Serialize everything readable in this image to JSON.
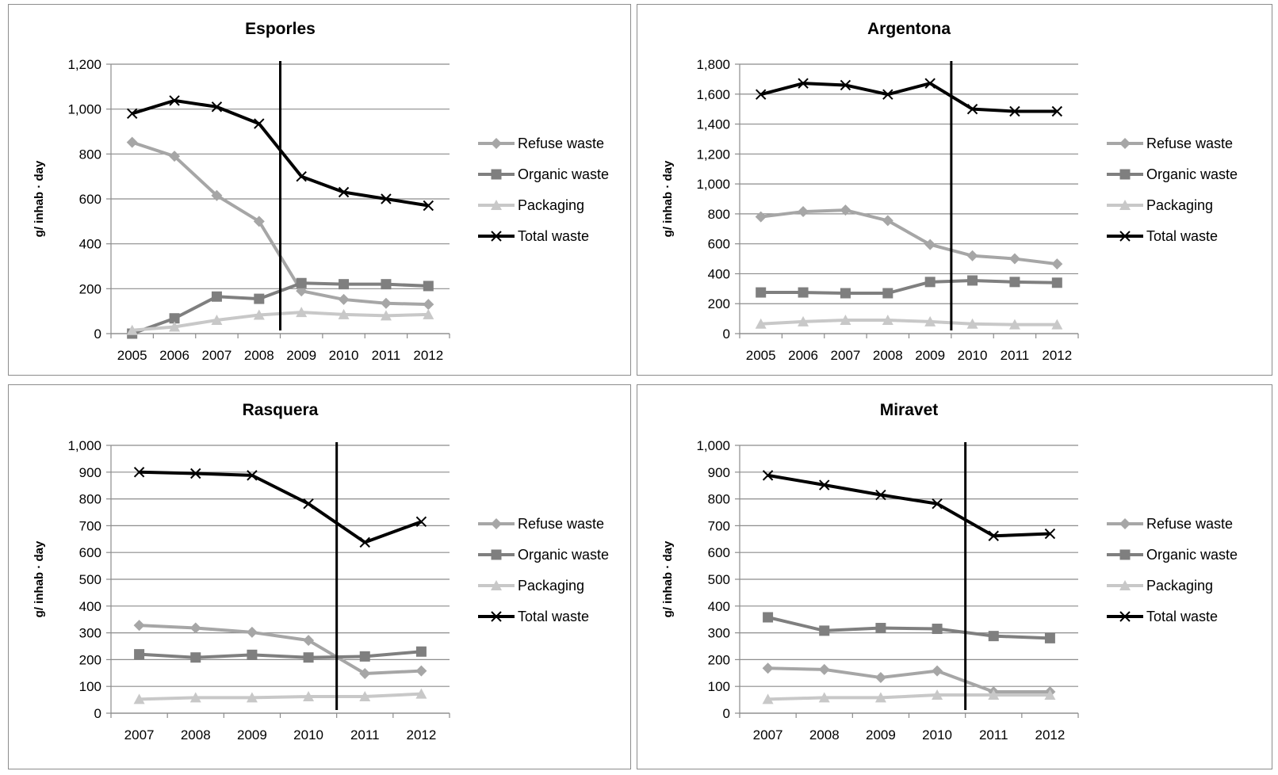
{
  "chart_data": [
    {
      "type": "line",
      "title": "Esporles",
      "ylabel": "g/ inhab · day",
      "xlabel": "",
      "x": [
        "2005",
        "2006",
        "2007",
        "2008",
        "2009",
        "2010",
        "2011",
        "2012"
      ],
      "ylim": [
        0,
        1200
      ],
      "yticks": [
        "0",
        "200",
        "400",
        "600",
        "800",
        "1,000",
        "1,200"
      ],
      "grid": true,
      "legend_position": "right",
      "marker_line_after": "2008",
      "series": [
        {
          "name": "Refuse waste",
          "color": "#a6a6a6",
          "marker": "diamond",
          "values": [
            852,
            790,
            615,
            500,
            190,
            152,
            135,
            130
          ]
        },
        {
          "name": "Organic waste",
          "color": "#7f7f7f",
          "marker": "square",
          "values": [
            0,
            68,
            165,
            155,
            225,
            220,
            220,
            212
          ]
        },
        {
          "name": "Packaging",
          "color": "#c8c8c8",
          "marker": "triangle",
          "values": [
            15,
            30,
            60,
            83,
            95,
            85,
            80,
            85
          ]
        },
        {
          "name": "Total waste",
          "color": "#000000",
          "marker": "x",
          "values": [
            980,
            1038,
            1010,
            935,
            700,
            630,
            600,
            570
          ]
        }
      ]
    },
    {
      "type": "line",
      "title": "Argentona",
      "ylabel": "g/ inhab · day",
      "xlabel": "",
      "x": [
        "2005",
        "2006",
        "2007",
        "2008",
        "2009",
        "2010",
        "2011",
        "2012"
      ],
      "ylim": [
        0,
        1800
      ],
      "yticks": [
        "0",
        "200",
        "400",
        "600",
        "800",
        "1,000",
        "1,200",
        "1,400",
        "1,600",
        "1,800"
      ],
      "grid": true,
      "legend_position": "right",
      "marker_line_after": "2009",
      "series": [
        {
          "name": "Refuse waste",
          "color": "#a6a6a6",
          "marker": "diamond",
          "values": [
            780,
            815,
            825,
            755,
            595,
            520,
            500,
            465
          ]
        },
        {
          "name": "Organic waste",
          "color": "#7f7f7f",
          "marker": "square",
          "values": [
            275,
            275,
            270,
            270,
            345,
            355,
            345,
            340
          ]
        },
        {
          "name": "Packaging",
          "color": "#c8c8c8",
          "marker": "triangle",
          "values": [
            65,
            80,
            90,
            90,
            80,
            65,
            60,
            60
          ]
        },
        {
          "name": "Total waste",
          "color": "#000000",
          "marker": "x",
          "values": [
            1598,
            1672,
            1660,
            1598,
            1672,
            1500,
            1485,
            1485
          ]
        }
      ]
    },
    {
      "type": "line",
      "title": "Rasquera",
      "ylabel": "g/ inhab · day",
      "xlabel": "",
      "x": [
        "2007",
        "2008",
        "2009",
        "2010",
        "2011",
        "2012"
      ],
      "ylim": [
        0,
        1000
      ],
      "yticks": [
        "0",
        "100",
        "200",
        "300",
        "400",
        "500",
        "600",
        "700",
        "800",
        "900",
        "1,000"
      ],
      "grid": true,
      "legend_position": "right",
      "marker_line_after": "2010",
      "series": [
        {
          "name": "Refuse waste",
          "color": "#a6a6a6",
          "marker": "diamond",
          "values": [
            328,
            318,
            302,
            272,
            148,
            158
          ]
        },
        {
          "name": "Organic waste",
          "color": "#7f7f7f",
          "marker": "square",
          "values": [
            220,
            208,
            218,
            208,
            212,
            230
          ]
        },
        {
          "name": "Packaging",
          "color": "#c8c8c8",
          "marker": "triangle",
          "values": [
            52,
            58,
            58,
            62,
            62,
            72
          ]
        },
        {
          "name": "Total waste",
          "color": "#000000",
          "marker": "x",
          "values": [
            900,
            895,
            888,
            782,
            638,
            715
          ]
        }
      ]
    },
    {
      "type": "line",
      "title": "Miravet",
      "ylabel": "g/ inhab · day",
      "xlabel": "",
      "x": [
        "2007",
        "2008",
        "2009",
        "2010",
        "2011",
        "2012"
      ],
      "ylim": [
        0,
        1000
      ],
      "yticks": [
        "0",
        "100",
        "200",
        "300",
        "400",
        "500",
        "600",
        "700",
        "800",
        "900",
        "1,000"
      ],
      "grid": true,
      "legend_position": "right",
      "marker_line_after": "2010",
      "series": [
        {
          "name": "Refuse waste",
          "color": "#a6a6a6",
          "marker": "diamond",
          "values": [
            168,
            163,
            133,
            158,
            80,
            80
          ]
        },
        {
          "name": "Organic waste",
          "color": "#7f7f7f",
          "marker": "square",
          "values": [
            358,
            308,
            318,
            315,
            288,
            280
          ]
        },
        {
          "name": "Packaging",
          "color": "#c8c8c8",
          "marker": "triangle",
          "values": [
            52,
            58,
            58,
            68,
            68,
            68
          ]
        },
        {
          "name": "Total waste",
          "color": "#000000",
          "marker": "x",
          "values": [
            888,
            852,
            815,
            782,
            662,
            670
          ]
        }
      ]
    }
  ]
}
